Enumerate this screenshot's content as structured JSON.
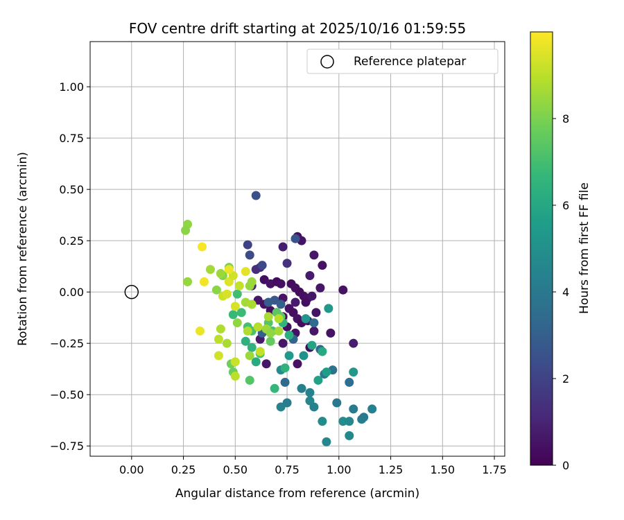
{
  "chart_data": {
    "type": "scatter",
    "title": "FOV centre drift starting at 2025/10/16 01:59:55",
    "xlabel": "Angular distance from reference (arcmin)",
    "ylabel": "Rotation from reference (arcmin)",
    "xlim": [
      -0.2,
      1.8
    ],
    "ylim": [
      -0.8,
      1.22
    ],
    "xticks": [
      0.0,
      0.25,
      0.5,
      0.75,
      1.0,
      1.25,
      1.5,
      1.75
    ],
    "xtick_labels": [
      "0.00",
      "0.25",
      "0.50",
      "0.75",
      "1.00",
      "1.25",
      "1.50",
      "1.75"
    ],
    "yticks": [
      -0.75,
      -0.5,
      -0.25,
      0.0,
      0.25,
      0.5,
      0.75,
      1.0
    ],
    "ytick_labels": [
      "−0.75",
      "−0.50",
      "−0.25",
      "0.00",
      "0.25",
      "0.50",
      "0.75",
      "1.00"
    ],
    "grid": true,
    "legend": {
      "position": "top-right",
      "label": "Reference platepar"
    },
    "reference_point": {
      "x": 0.0,
      "y": 0.0
    },
    "colorbar": {
      "label": "Hours from first FF file",
      "range": [
        0,
        10
      ],
      "ticks": [
        0,
        2,
        4,
        6,
        8
      ],
      "tick_labels": [
        "0",
        "2",
        "4",
        "6",
        "8"
      ],
      "colormap": [
        "#440154",
        "#482878",
        "#3e4989",
        "#31688e",
        "#26828e",
        "#1f9e89",
        "#35b779",
        "#6ece58",
        "#b5de2b",
        "#fde725"
      ]
    },
    "points": [
      [
        0.8,
        0.27,
        0.4
      ],
      [
        0.82,
        0.25,
        0.5
      ],
      [
        0.73,
        0.22,
        0.8
      ],
      [
        0.92,
        0.13,
        0.5
      ],
      [
        0.88,
        0.18,
        0.6
      ],
      [
        0.75,
        0.14,
        1.4
      ],
      [
        0.86,
        0.08,
        0.7
      ],
      [
        0.91,
        0.02,
        0.6
      ],
      [
        1.02,
        0.01,
        0.5
      ],
      [
        0.64,
        0.06,
        0.4
      ],
      [
        0.67,
        0.04,
        0.5
      ],
      [
        0.7,
        0.05,
        0.3
      ],
      [
        0.72,
        0.04,
        0.4
      ],
      [
        0.77,
        0.04,
        0.3
      ],
      [
        0.79,
        0.02,
        0.4
      ],
      [
        0.81,
        0.0,
        0.3
      ],
      [
        0.83,
        -0.02,
        0.4
      ],
      [
        0.85,
        -0.03,
        0.5
      ],
      [
        0.87,
        -0.02,
        0.6
      ],
      [
        0.73,
        -0.03,
        0.5
      ],
      [
        0.61,
        -0.04,
        0.6
      ],
      [
        0.64,
        -0.06,
        0.5
      ],
      [
        0.67,
        -0.09,
        0.4
      ],
      [
        0.7,
        -0.1,
        0.3
      ],
      [
        0.73,
        -0.12,
        0.4
      ],
      [
        0.76,
        -0.08,
        0.5
      ],
      [
        0.78,
        -0.1,
        0.4
      ],
      [
        0.8,
        -0.13,
        0.5
      ],
      [
        0.82,
        -0.15,
        0.3
      ],
      [
        0.85,
        -0.14,
        0.6
      ],
      [
        0.89,
        -0.1,
        0.5
      ],
      [
        0.84,
        -0.05,
        0.4
      ],
      [
        0.79,
        -0.05,
        0.7
      ],
      [
        0.75,
        -0.17,
        0.4
      ],
      [
        0.79,
        -0.2,
        0.5
      ],
      [
        0.88,
        -0.19,
        0.6
      ],
      [
        0.96,
        -0.2,
        0.5
      ],
      [
        0.73,
        -0.25,
        0.6
      ],
      [
        0.86,
        -0.27,
        0.4
      ],
      [
        0.62,
        -0.23,
        0.7
      ],
      [
        0.65,
        -0.35,
        0.6
      ],
      [
        0.8,
        -0.35,
        0.5
      ],
      [
        1.07,
        -0.25,
        0.8
      ],
      [
        0.62,
        0.12,
        1.2
      ],
      [
        0.6,
        0.11,
        1.3
      ],
      [
        0.58,
        0.03,
        1.1
      ],
      [
        0.6,
        0.47,
        2.5
      ],
      [
        0.56,
        0.23,
        2.0
      ],
      [
        0.57,
        0.18,
        2.3
      ],
      [
        0.79,
        0.26,
        2.6
      ],
      [
        0.63,
        0.13,
        2.2
      ],
      [
        0.69,
        -0.04,
        2.8
      ],
      [
        0.72,
        -0.06,
        3.0
      ],
      [
        0.66,
        -0.05,
        2.9
      ],
      [
        0.88,
        -0.15,
        3.5
      ],
      [
        0.91,
        -0.28,
        3.3
      ],
      [
        0.97,
        -0.38,
        3.8
      ],
      [
        0.93,
        -0.4,
        3.9
      ],
      [
        1.05,
        -0.44,
        3.6
      ],
      [
        0.74,
        -0.44,
        3.4
      ],
      [
        0.78,
        -0.23,
        3.2
      ],
      [
        0.63,
        -0.2,
        3.0
      ],
      [
        1.07,
        -0.57,
        4.2
      ],
      [
        1.11,
        -0.62,
        4.3
      ],
      [
        1.16,
        -0.57,
        4.4
      ],
      [
        1.12,
        -0.61,
        4.1
      ],
      [
        0.99,
        -0.54,
        4.0
      ],
      [
        0.82,
        -0.47,
        4.3
      ],
      [
        0.86,
        -0.49,
        4.5
      ],
      [
        0.86,
        -0.53,
        4.6
      ],
      [
        0.88,
        -0.56,
        4.4
      ],
      [
        0.72,
        -0.56,
        4.5
      ],
      [
        0.75,
        -0.54,
        4.2
      ],
      [
        0.94,
        -0.73,
        4.6
      ],
      [
        1.05,
        -0.7,
        4.7
      ],
      [
        0.92,
        -0.63,
        4.8
      ],
      [
        1.02,
        -0.63,
        4.9
      ],
      [
        1.05,
        -0.63,
        4.7
      ],
      [
        0.72,
        -0.38,
        4.9
      ],
      [
        0.83,
        -0.31,
        5.1
      ],
      [
        0.95,
        -0.08,
        5.3
      ],
      [
        0.84,
        -0.13,
        5.2
      ],
      [
        0.76,
        -0.31,
        5.4
      ],
      [
        1.07,
        -0.39,
        5.3
      ],
      [
        0.94,
        -0.39,
        5.5
      ],
      [
        0.9,
        -0.43,
        5.7
      ],
      [
        0.87,
        -0.26,
        5.8
      ],
      [
        0.92,
        -0.29,
        6.0
      ],
      [
        0.55,
        -0.24,
        6.3
      ],
      [
        0.6,
        -0.34,
        6.1
      ],
      [
        0.74,
        -0.37,
        6.4
      ],
      [
        0.73,
        -0.15,
        6.5
      ],
      [
        0.76,
        -0.21,
        6.2
      ],
      [
        0.69,
        -0.47,
        6.6
      ],
      [
        0.58,
        -0.27,
        6.4
      ],
      [
        0.53,
        -0.1,
        6.8
      ],
      [
        0.49,
        -0.11,
        6.7
      ],
      [
        0.51,
        -0.01,
        6.9
      ],
      [
        0.56,
        -0.17,
        7.0
      ],
      [
        0.58,
        -0.19,
        7.1
      ],
      [
        0.62,
        -0.3,
        7.2
      ],
      [
        0.66,
        -0.15,
        7.3
      ],
      [
        0.68,
        -0.19,
        7.0
      ],
      [
        0.7,
        -0.1,
        7.4
      ],
      [
        0.72,
        -0.12,
        7.5
      ],
      [
        0.67,
        -0.24,
        7.6
      ],
      [
        0.57,
        -0.43,
        7.3
      ],
      [
        0.49,
        -0.39,
        7.7
      ],
      [
        0.48,
        -0.35,
        7.8
      ],
      [
        0.47,
        0.12,
        8.0
      ],
      [
        0.44,
        0.08,
        8.1
      ],
      [
        0.41,
        0.01,
        8.2
      ],
      [
        0.27,
        0.33,
        8.3
      ],
      [
        0.26,
        0.3,
        8.2
      ],
      [
        0.27,
        0.05,
        8.4
      ],
      [
        0.38,
        0.11,
        8.6
      ],
      [
        0.43,
        0.09,
        8.5
      ],
      [
        0.51,
        -0.15,
        8.3
      ],
      [
        0.55,
        -0.05,
        8.6
      ],
      [
        0.58,
        -0.06,
        8.7
      ],
      [
        0.57,
        0.03,
        8.4
      ],
      [
        0.58,
        0.05,
        8.5
      ],
      [
        0.43,
        -0.18,
        8.8
      ],
      [
        0.42,
        -0.23,
        9.0
      ],
      [
        0.46,
        -0.25,
        8.7
      ],
      [
        0.56,
        -0.19,
        8.8
      ],
      [
        0.61,
        -0.17,
        8.9
      ],
      [
        0.65,
        -0.18,
        8.5
      ],
      [
        0.66,
        -0.12,
        8.7
      ],
      [
        0.71,
        -0.13,
        8.9
      ],
      [
        0.71,
        -0.19,
        8.6
      ],
      [
        0.67,
        -0.2,
        8.3
      ],
      [
        0.57,
        -0.31,
        8.5
      ],
      [
        0.44,
        -0.02,
        9.2
      ],
      [
        0.46,
        -0.01,
        9.4
      ],
      [
        0.47,
        0.05,
        9.5
      ],
      [
        0.49,
        0.08,
        9.3
      ],
      [
        0.52,
        0.03,
        9.1
      ],
      [
        0.55,
        0.1,
        9.6
      ],
      [
        0.5,
        -0.07,
        9.4
      ],
      [
        0.42,
        -0.31,
        9.3
      ],
      [
        0.33,
        -0.19,
        9.7
      ],
      [
        0.35,
        0.05,
        9.8
      ],
      [
        0.34,
        0.22,
        9.9
      ],
      [
        0.47,
        0.11,
        9.7
      ],
      [
        0.5,
        -0.34,
        9.2
      ],
      [
        0.5,
        -0.41,
        9.0
      ],
      [
        0.62,
        -0.29,
        9.1
      ]
    ]
  }
}
